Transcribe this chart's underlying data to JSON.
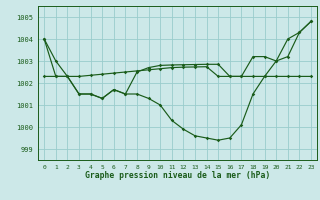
{
  "xlabel": "Graphe pression niveau de la mer (hPa)",
  "background_color": "#cce8e8",
  "line_color": "#1a5c1a",
  "grid_color": "#99cccc",
  "ylim": [
    998.5,
    1005.5
  ],
  "xlim": [
    -0.5,
    23.5
  ],
  "yticks": [
    999,
    1000,
    1001,
    1002,
    1003,
    1004,
    1005
  ],
  "xticks": [
    0,
    1,
    2,
    3,
    4,
    5,
    6,
    7,
    8,
    9,
    10,
    11,
    12,
    13,
    14,
    15,
    16,
    17,
    18,
    19,
    20,
    21,
    22,
    23
  ],
  "line1": [
    1004.0,
    1003.0,
    1002.3,
    1001.5,
    1001.5,
    1001.3,
    1001.7,
    1001.5,
    1001.5,
    1001.3,
    1001.0,
    1000.3,
    999.9,
    999.6,
    999.5,
    999.4,
    999.5,
    1000.1,
    1001.5,
    1002.3,
    1003.0,
    1004.0,
    1004.3,
    1004.8
  ],
  "line2": [
    1002.3,
    1002.3,
    1002.3,
    1002.3,
    1002.35,
    1002.4,
    1002.45,
    1002.5,
    1002.55,
    1002.6,
    1002.65,
    1002.7,
    1002.72,
    1002.73,
    1002.74,
    1002.3,
    1002.3,
    1002.3,
    1002.3,
    1002.3,
    1002.3,
    1002.3,
    1002.3,
    1002.3
  ],
  "line3": [
    1004.0,
    1002.3,
    1002.3,
    1001.5,
    1001.5,
    1001.3,
    1001.7,
    1001.5,
    1002.5,
    1002.7,
    1002.8,
    1002.82,
    1002.83,
    1002.84,
    1002.85,
    1002.85,
    1002.3,
    1002.3,
    1003.2,
    1003.2,
    1003.0,
    1003.2,
    1004.3,
    1004.8
  ]
}
